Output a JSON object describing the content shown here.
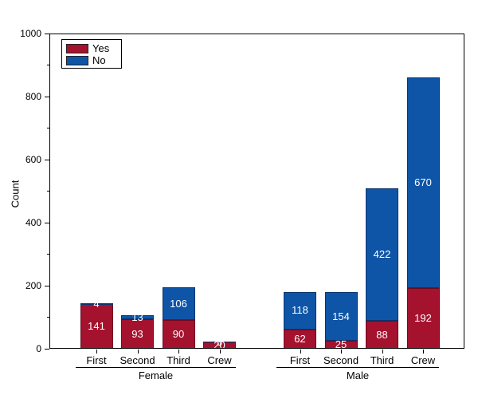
{
  "chart_data": {
    "type": "bar",
    "stacked": true,
    "title": "",
    "xlabel": "",
    "ylabel": "Count",
    "ylim": [
      0,
      1000
    ],
    "y_major_ticks": [
      0,
      200,
      400,
      600,
      800,
      1000
    ],
    "y_major_tick_labels": [
      "0",
      "200",
      "400",
      "600",
      "800",
      "1000"
    ],
    "y_minor_ticks": [
      100,
      300,
      500,
      700,
      900
    ],
    "grid": false,
    "legend_position": "top-left-inside",
    "bar_value_labels": "white text centered in each segment",
    "series": [
      {
        "name": "Yes",
        "color": "#a5122e",
        "border_color": "#6e0a1f"
      },
      {
        "name": "No",
        "color": "#0e55a7",
        "border_color": "#0b356e"
      }
    ],
    "groups": [
      {
        "label": "Female",
        "categories": [
          "First",
          "Second",
          "Third",
          "Crew"
        ],
        "values": [
          [
            141,
            93,
            90,
            20
          ],
          [
            4,
            13,
            106,
            3
          ]
        ]
      },
      {
        "label": "Male",
        "categories": [
          "First",
          "Second",
          "Third",
          "Crew"
        ],
        "values": [
          [
            62,
            25,
            88,
            192
          ],
          [
            118,
            154,
            422,
            670
          ]
        ]
      }
    ]
  },
  "colors": {
    "background": "#ffffff",
    "axis": "#000000",
    "bar_label_text": "#ffffff"
  }
}
